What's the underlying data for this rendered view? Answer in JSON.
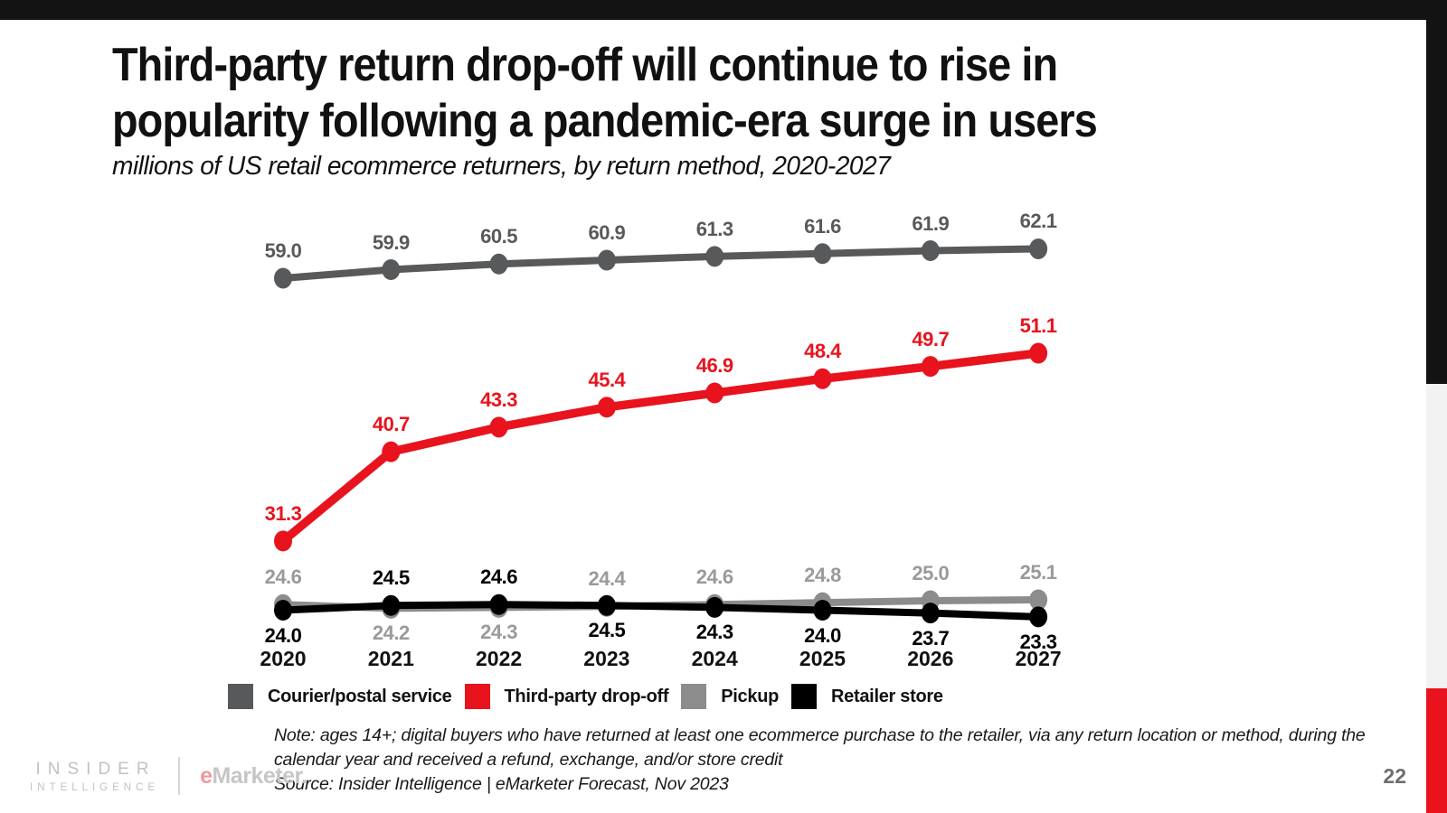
{
  "slide": {
    "title_line1": "Third-party return drop-off will continue to rise in",
    "title_line2": "popularity following a pandemic-era surge in users",
    "subtitle": "millions of US retail ecommerce returners, by return method, 2020-2027",
    "note_line1": "Note: ages 14+; digital buyers who have returned at least one ecommerce purchase to the retailer, via any return location or method, during the",
    "note_line2": "calendar year and received a refund, exchange, and/or store credit",
    "source": "Source: Insider Intelligence | eMarketer Forecast, Nov 2023",
    "page_number": "22",
    "accent_colors": {
      "bar_black": "#131313",
      "panel_gray": "#f2f2f2",
      "panel_red": "#e8131d"
    }
  },
  "footer_brand": {
    "insider": "INSIDER",
    "intelligence": "INTELLIGENCE",
    "emarketer_e": "e",
    "emarketer_rest": "Marketer."
  },
  "chart_data": {
    "type": "line",
    "title": "Third-party return drop-off will continue to rise in popularity following a pandemic-era surge in users",
    "subtitle": "millions of US retail ecommerce returners, by return method, 2020-2027",
    "xlabel": "",
    "ylabel": "millions of US retail ecommerce returners",
    "categories": [
      "2020",
      "2021",
      "2022",
      "2023",
      "2024",
      "2025",
      "2026",
      "2027"
    ],
    "series": [
      {
        "name": "Courier/postal service",
        "color": "#58595b",
        "label_color": "#58595b",
        "values": [
          59.0,
          59.9,
          60.5,
          60.9,
          61.3,
          61.6,
          61.9,
          62.1
        ],
        "label_side": "above"
      },
      {
        "name": "Third-party drop-off",
        "color": "#e8131d",
        "label_color": "#e8131d",
        "values": [
          31.3,
          40.7,
          43.3,
          45.4,
          46.9,
          48.4,
          49.7,
          51.1
        ],
        "label_side": "above"
      },
      {
        "name": "Pickup",
        "color": "#8c8c8c",
        "label_color": "#9a9a9a",
        "values": [
          24.6,
          24.2,
          24.3,
          24.4,
          24.6,
          24.8,
          25.0,
          25.1
        ],
        "label_side": [
          "above",
          "below",
          "below",
          "above",
          "above",
          "above",
          "above",
          "above"
        ]
      },
      {
        "name": "Retailer store",
        "color": "#000000",
        "label_color": "#000000",
        "values": [
          24.0,
          24.5,
          24.6,
          24.5,
          24.3,
          24.0,
          23.7,
          23.3
        ],
        "label_side": [
          "below",
          "above",
          "above",
          "below",
          "below",
          "below",
          "below",
          "below"
        ]
      }
    ],
    "grid": false,
    "axes_hidden": true,
    "legend_position": "bottom",
    "ylim": [
      23,
      63
    ]
  }
}
